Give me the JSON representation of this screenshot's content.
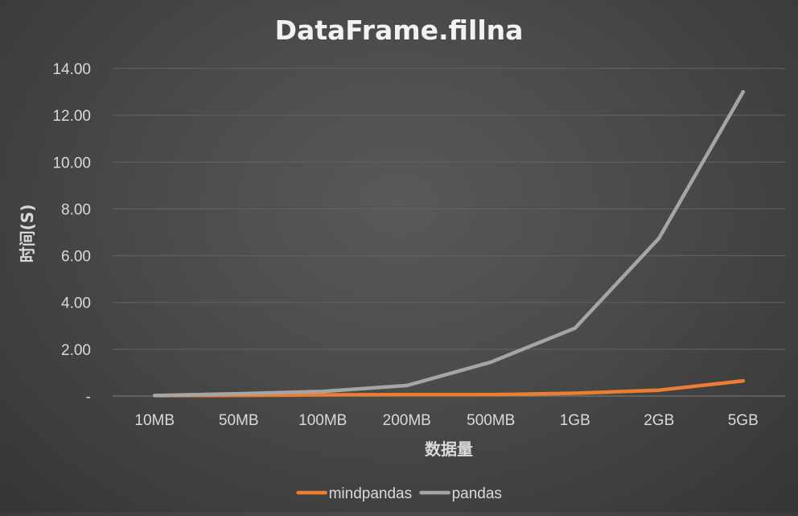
{
  "chart_data": {
    "type": "line",
    "title": "DataFrame.fillna",
    "xlabel": "数据量",
    "ylabel": "时间(S)",
    "categories": [
      "10MB",
      "50MB",
      "100MB",
      "200MB",
      "500MB",
      "1GB",
      "2GB",
      "5GB"
    ],
    "y_ticks": [
      "-",
      "2.00",
      "4.00",
      "6.00",
      "8.00",
      "10.00",
      "12.00",
      "14.00"
    ],
    "ylim": [
      0,
      14
    ],
    "grid": true,
    "legend_position": "bottom",
    "series": [
      {
        "name": "mindpandas",
        "color": "#ed7d31",
        "values": [
          0.02,
          0.03,
          0.05,
          0.06,
          0.06,
          0.12,
          0.25,
          0.65
        ]
      },
      {
        "name": "pandas",
        "color": "#a5a5a5",
        "values": [
          0.02,
          0.1,
          0.2,
          0.45,
          1.45,
          2.9,
          6.75,
          13.0
        ]
      }
    ]
  }
}
